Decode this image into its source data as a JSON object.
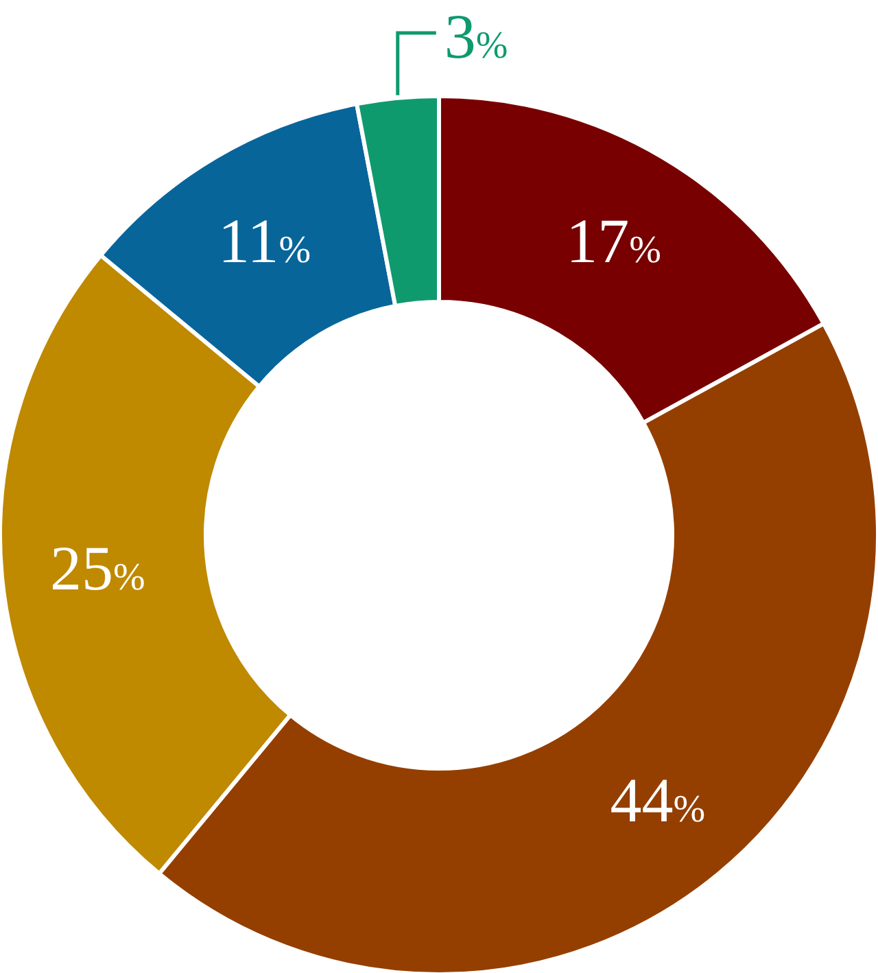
{
  "chart_data": {
    "type": "donut",
    "categories": [
      null,
      null,
      null,
      null,
      null
    ],
    "values": [
      17,
      44,
      25,
      11,
      3
    ],
    "colors": [
      "#780000",
      "#943f00",
      "#bf8900",
      "#08659a",
      "#0f9a6e"
    ],
    "value_labels": [
      "17%",
      "44%",
      "25%",
      "11%",
      "3%"
    ]
  }
}
